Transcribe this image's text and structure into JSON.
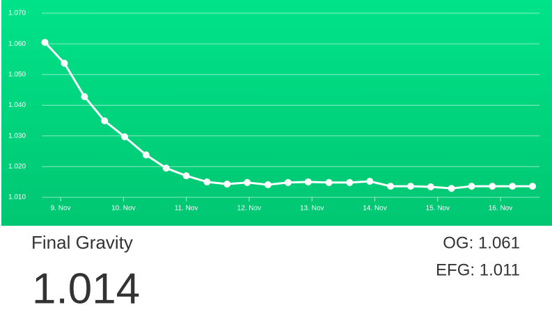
{
  "chart_data": {
    "type": "line",
    "x": [
      8.75,
      9.06,
      9.38,
      9.7,
      10.02,
      10.36,
      10.68,
      11.0,
      11.33,
      11.65,
      11.97,
      12.3,
      12.62,
      12.94,
      13.27,
      13.6,
      13.92,
      14.25,
      14.57,
      14.89,
      15.22,
      15.54,
      15.87,
      16.19,
      16.51
    ],
    "series": [
      {
        "color": "#ffffff",
        "values": [
          1.0605,
          1.0537,
          1.0428,
          1.0349,
          1.0297,
          1.0238,
          1.0195,
          1.017,
          1.015,
          1.0143,
          1.0148,
          1.0141,
          1.0148,
          1.015,
          1.0148,
          1.0148,
          1.0152,
          1.0136,
          1.0136,
          1.0134,
          1.0129,
          1.0136,
          1.0136,
          1.0136,
          1.0136
        ]
      }
    ],
    "xlim": [
      8.7,
      16.62
    ],
    "xticks": [
      {
        "value": 9,
        "label": "9. Nov"
      },
      {
        "value": 10,
        "label": "10. Nov"
      },
      {
        "value": 11,
        "label": "11. Nov"
      },
      {
        "value": 12,
        "label": "12. Nov"
      },
      {
        "value": 13,
        "label": "13. Nov"
      },
      {
        "value": 14,
        "label": "14. Nov"
      },
      {
        "value": 15,
        "label": "15. Nov"
      },
      {
        "value": 16,
        "label": "16. Nov"
      }
    ],
    "ylim": [
      1.01,
      1.07
    ],
    "yticks": [
      {
        "value": 1.01,
        "label": "1.010"
      },
      {
        "value": 1.02,
        "label": "1.020"
      },
      {
        "value": 1.03,
        "label": "1.030"
      },
      {
        "value": 1.04,
        "label": "1.040"
      },
      {
        "value": 1.05,
        "label": "1.050"
      },
      {
        "value": 1.06,
        "label": "1.060"
      },
      {
        "value": 1.07,
        "label": "1.070"
      }
    ],
    "grid": true
  },
  "summary": {
    "label": "Final Gravity",
    "value": "1.014",
    "og": "OG: 1.061",
    "efg": "EFG: 1.011"
  }
}
